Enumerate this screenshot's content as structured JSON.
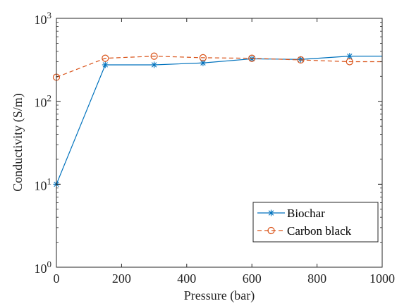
{
  "chart_data": {
    "type": "line",
    "title": "",
    "xlabel": "Pressure (bar)",
    "ylabel": "Conductivity (S/m)",
    "x_scale": "linear",
    "y_scale": "log",
    "xlim": [
      0,
      1000
    ],
    "ylim": [
      1,
      1000
    ],
    "x_ticks": [
      0,
      200,
      400,
      600,
      800,
      1000
    ],
    "x_tick_labels": [
      "0",
      "200",
      "400",
      "600",
      "800",
      "1000"
    ],
    "y_ticks": [
      1,
      10,
      100,
      1000
    ],
    "y_tick_labels": [
      {
        "base": "10",
        "exp": "0"
      },
      {
        "base": "10",
        "exp": "1"
      },
      {
        "base": "10",
        "exp": "2"
      },
      {
        "base": "10",
        "exp": "3"
      }
    ],
    "grid": false,
    "legend_position": "bottom-right",
    "series": [
      {
        "name": "Biochar",
        "color": "#0072BD",
        "line_style": "solid",
        "marker": "asterisk",
        "x": [
          0,
          150,
          300,
          450,
          600,
          750,
          900,
          1000
        ],
        "y": [
          10,
          275,
          275,
          290,
          325,
          320,
          350,
          350
        ],
        "marked": [
          true,
          true,
          true,
          true,
          true,
          true,
          true,
          false
        ]
      },
      {
        "name": "Carbon black",
        "color": "#D95319",
        "line_style": "dashed",
        "marker": "circle",
        "x": [
          0,
          150,
          300,
          450,
          600,
          750,
          900,
          1000
        ],
        "y": [
          195,
          330,
          350,
          335,
          330,
          315,
          300,
          300
        ],
        "marked": [
          true,
          true,
          true,
          true,
          true,
          true,
          true,
          false
        ]
      }
    ]
  }
}
